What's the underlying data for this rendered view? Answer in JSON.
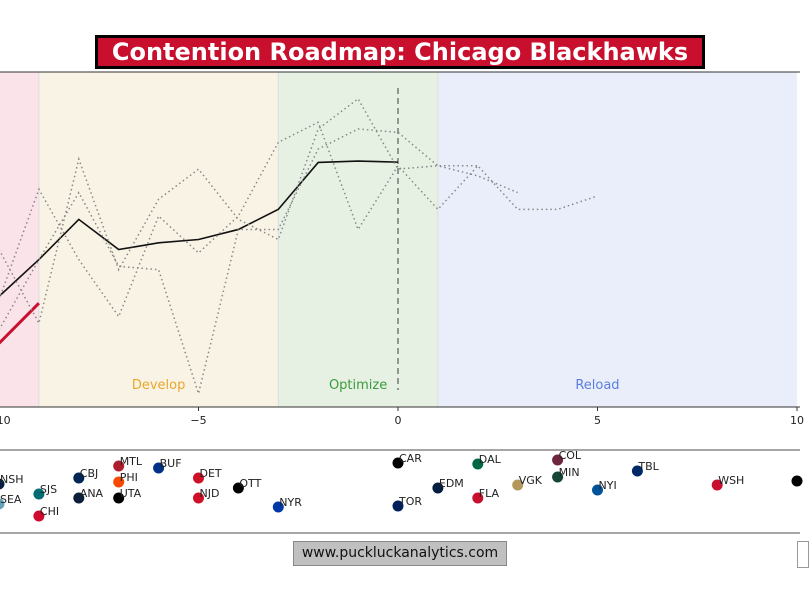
{
  "chart_data": [
    {
      "type": "line",
      "title": "Contention Roadmap: Chicago Blackhawks",
      "xlim": [
        -10,
        10
      ],
      "x_ticks": [
        "−10",
        "−5",
        "0",
        "5",
        "10"
      ],
      "x_tick_values": [
        -10,
        -5,
        0,
        5,
        10
      ],
      "y_axis_shown": false,
      "grid": false,
      "phases": [
        {
          "label": "",
          "from": -10,
          "to": -9,
          "color": "#fbe3ea",
          "label_color": ""
        },
        {
          "label": "Develop",
          "from": -9,
          "to": -3,
          "color": "#f9f3e6",
          "label_color": "#e8a92a"
        },
        {
          "label": "Optimize",
          "from": -3,
          "to": 1,
          "color": "#e6f1e4",
          "label_color": "#3c9a3c"
        },
        {
          "label": "Reload",
          "from": 1,
          "to": 10,
          "color": "#e9eefa",
          "label_color": "#5b7fe0"
        }
      ],
      "current_marker_x": 0,
      "series": [
        {
          "style": "solid",
          "color": "#111111",
          "x": [
            -10,
            -9,
            -8,
            -7,
            -6,
            -5,
            -4,
            -3,
            -2,
            -1,
            0
          ],
          "y": [
            33,
            44,
            56,
            47,
            49,
            50,
            53,
            59,
            73,
            73.4,
            73.1
          ]
        },
        {
          "style": "solid",
          "color": "#c8102e",
          "x": [
            -10,
            -9
          ],
          "y": [
            19,
            31
          ]
        },
        {
          "style": "dotted",
          "color": "#888888",
          "x": [
            -10,
            -9,
            -8,
            -7,
            -6,
            -5,
            -4,
            -3,
            -2,
            -1,
            0,
            1,
            2,
            3,
            4,
            5
          ],
          "y": [
            32,
            65,
            44,
            27,
            57,
            46,
            57,
            79,
            85,
            53,
            72,
            59,
            72,
            59,
            59,
            63
          ]
        },
        {
          "style": "dotted",
          "color": "#888888",
          "x": [
            -10,
            -9,
            -8,
            -7,
            -6,
            -5,
            -4,
            -3,
            -2,
            -1,
            0,
            1,
            2
          ],
          "y": [
            47,
            25,
            74,
            41,
            62,
            71,
            56,
            50,
            83,
            92,
            71,
            72,
            72
          ]
        },
        {
          "style": "dotted",
          "color": "#888888",
          "x": [
            -10,
            -9,
            -8,
            -7,
            -6,
            -5,
            -4,
            -3,
            -2,
            -1,
            0,
            1,
            2,
            3
          ],
          "y": [
            23,
            44,
            64,
            42,
            41,
            4,
            53,
            53,
            77,
            83,
            82,
            72,
            69,
            64
          ]
        }
      ]
    },
    {
      "type": "scatter",
      "xlim": [
        -10,
        10
      ],
      "teams": [
        {
          "label": "NSH",
          "x": -10,
          "color": "#041e42"
        },
        {
          "label": "SEA",
          "x": -10,
          "color": "#68a2b9"
        },
        {
          "label": "SJS",
          "x": -9,
          "color": "#006d75"
        },
        {
          "label": "CHI",
          "x": -9,
          "color": "#cf0a2c"
        },
        {
          "label": "CBJ",
          "x": -8,
          "color": "#002654"
        },
        {
          "label": "ANA",
          "x": -8,
          "color": "#0b1e3a"
        },
        {
          "label": "MTL",
          "x": -7,
          "color": "#af1e2d"
        },
        {
          "label": "PHI",
          "x": -7,
          "color": "#f74902"
        },
        {
          "label": "UTA",
          "x": -7,
          "color": "#000000"
        },
        {
          "label": "BUF",
          "x": -6,
          "color": "#003087"
        },
        {
          "label": "DET",
          "x": -5,
          "color": "#ce1126"
        },
        {
          "label": "NJD",
          "x": -5,
          "color": "#ce1126"
        },
        {
          "label": "OTT",
          "x": -4,
          "color": "#000000"
        },
        {
          "label": "NYR",
          "x": -3,
          "color": "#0038a8"
        },
        {
          "label": "CAR",
          "x": 0,
          "color": "#000000"
        },
        {
          "label": "TOR",
          "x": 0,
          "color": "#00205b"
        },
        {
          "label": "EDM",
          "x": 1,
          "color": "#041e42"
        },
        {
          "label": "DAL",
          "x": 2,
          "color": "#006847"
        },
        {
          "label": "FLA",
          "x": 2,
          "color": "#c8102e"
        },
        {
          "label": "VGK",
          "x": 3,
          "color": "#b4975a"
        },
        {
          "label": "COL",
          "x": 4,
          "color": "#6f263d"
        },
        {
          "label": "MIN",
          "x": 4,
          "color": "#154734"
        },
        {
          "label": "NYI",
          "x": 5,
          "color": "#00539b"
        },
        {
          "label": "TBL",
          "x": 6,
          "color": "#002868"
        },
        {
          "label": "WSH",
          "x": 8,
          "color": "#c8102e"
        },
        {
          "label": "",
          "x": 10,
          "color": "#000000"
        }
      ]
    }
  ],
  "footer": {
    "website": "www.puckluckanalytics.com"
  }
}
